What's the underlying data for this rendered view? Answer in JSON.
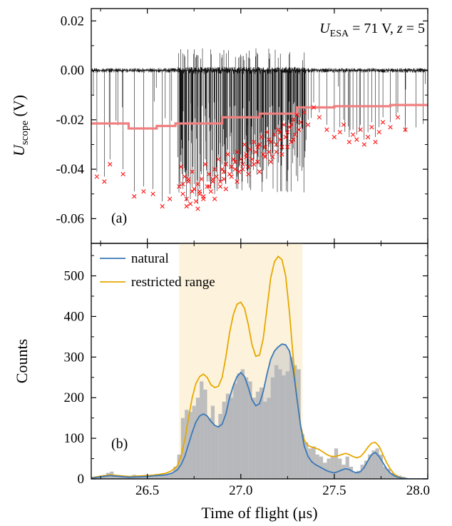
{
  "chart_data": [
    {
      "panel_label": "(a)",
      "type": "line",
      "ylabel_main": "U",
      "ylabel_sub": "scope",
      "ylabel_unit": " (V)",
      "annotation": {
        "u": "U",
        "u_sub": "ESA",
        "eq": " = 71 V,  ",
        "z": "z",
        "z_eq": " = 5"
      },
      "xlim": [
        26.2,
        28.0
      ],
      "ylim": [
        -0.07,
        0.025
      ],
      "yticks": [
        0.02,
        0.0,
        -0.02,
        -0.04,
        -0.06
      ],
      "ytick_labels": [
        "0.02",
        "0.00",
        "-0.02",
        "-0.04",
        "-0.06"
      ],
      "colors": {
        "signal": "#000000",
        "threshold": "#f08080",
        "peaks": "#ff0000"
      },
      "threshold": {
        "x": [
          26.2,
          26.4,
          26.4,
          26.55,
          26.55,
          26.65,
          26.65,
          26.9,
          26.9,
          27.1,
          27.1,
          27.3,
          27.3,
          27.5,
          27.5,
          27.8,
          27.8,
          28.0
        ],
        "y": [
          -0.0215,
          -0.0215,
          -0.0235,
          -0.0235,
          -0.0225,
          -0.0225,
          -0.0215,
          -0.0215,
          -0.019,
          -0.019,
          -0.0175,
          -0.0175,
          -0.015,
          -0.015,
          -0.0145,
          -0.0145,
          -0.014,
          -0.014
        ]
      },
      "peaks": {
        "x": [
          26.23,
          26.27,
          26.3,
          26.37,
          26.43,
          26.48,
          26.53,
          26.58,
          26.62,
          26.67,
          26.68,
          26.69,
          26.7,
          26.71,
          26.72,
          26.73,
          26.74,
          26.75,
          26.76,
          26.77,
          26.78,
          26.79,
          26.8,
          26.81,
          26.82,
          26.83,
          26.84,
          26.85,
          26.86,
          26.87,
          26.88,
          26.89,
          26.9,
          26.91,
          26.92,
          26.93,
          26.94,
          26.95,
          26.96,
          26.97,
          26.98,
          26.99,
          27.0,
          27.01,
          27.02,
          27.03,
          27.04,
          27.05,
          27.06,
          27.07,
          27.08,
          27.09,
          27.1,
          27.11,
          27.12,
          27.13,
          27.14,
          27.15,
          27.16,
          27.17,
          27.18,
          27.19,
          27.2,
          27.21,
          27.22,
          27.23,
          27.24,
          27.25,
          27.26,
          27.27,
          27.28,
          27.29,
          27.3,
          27.31,
          27.32,
          27.34,
          27.36,
          27.39,
          27.42,
          27.46,
          27.5,
          27.53,
          27.55,
          27.58,
          27.6,
          27.62,
          27.64,
          27.66,
          27.68,
          27.7,
          27.72,
          27.74,
          27.76,
          27.8,
          27.84,
          27.88,
          26.69,
          26.71,
          26.74,
          26.77,
          26.8,
          26.83,
          26.86,
          26.89,
          26.92,
          26.95,
          26.98,
          27.01,
          27.04,
          27.07,
          27.1,
          27.13,
          27.16,
          27.19,
          27.22,
          27.25,
          27.28,
          26.72,
          26.78,
          26.85,
          26.91,
          26.97,
          27.03,
          27.09,
          27.15,
          27.21,
          27.27
        ],
        "y": [
          -0.043,
          -0.045,
          -0.038,
          -0.042,
          -0.051,
          -0.049,
          -0.05,
          -0.055,
          -0.052,
          -0.047,
          -0.039,
          -0.05,
          -0.043,
          -0.052,
          -0.045,
          -0.054,
          -0.041,
          -0.048,
          -0.053,
          -0.046,
          -0.05,
          -0.044,
          -0.052,
          -0.038,
          -0.047,
          -0.042,
          -0.049,
          -0.045,
          -0.04,
          -0.043,
          -0.036,
          -0.047,
          -0.04,
          -0.044,
          -0.038,
          -0.034,
          -0.042,
          -0.039,
          -0.036,
          -0.04,
          -0.033,
          -0.041,
          -0.036,
          -0.038,
          -0.03,
          -0.035,
          -0.039,
          -0.032,
          -0.036,
          -0.029,
          -0.033,
          -0.037,
          -0.03,
          -0.027,
          -0.034,
          -0.031,
          -0.025,
          -0.033,
          -0.029,
          -0.035,
          -0.026,
          -0.03,
          -0.024,
          -0.028,
          -0.031,
          -0.022,
          -0.027,
          -0.025,
          -0.023,
          -0.029,
          -0.02,
          -0.026,
          -0.018,
          -0.024,
          -0.021,
          -0.017,
          -0.022,
          -0.015,
          -0.019,
          -0.024,
          -0.027,
          -0.025,
          -0.022,
          -0.029,
          -0.026,
          -0.028,
          -0.024,
          -0.03,
          -0.027,
          -0.023,
          -0.029,
          -0.025,
          -0.021,
          -0.023,
          -0.019,
          -0.024,
          -0.046,
          -0.055,
          -0.049,
          -0.056,
          -0.051,
          -0.047,
          -0.052,
          -0.045,
          -0.048,
          -0.043,
          -0.045,
          -0.04,
          -0.042,
          -0.038,
          -0.041,
          -0.035,
          -0.037,
          -0.033,
          -0.034,
          -0.031,
          -0.028,
          -0.044,
          -0.049,
          -0.044,
          -0.041,
          -0.037,
          -0.034,
          -0.031,
          -0.028,
          -0.025,
          -0.022
        ]
      }
    },
    {
      "panel_label": "(b)",
      "type": "line",
      "xlabel": "Time of flight (μs)",
      "ylabel": "Counts",
      "xlim": [
        26.2,
        28.0
      ],
      "ylim": [
        0,
        580
      ],
      "xticks": [
        26.5,
        27.0,
        27.5,
        28.0
      ],
      "xtick_labels": [
        "26.5",
        "27.0",
        "27.5",
        "28.0"
      ],
      "yticks": [
        0,
        100,
        200,
        300,
        400,
        500
      ],
      "ytick_labels": [
        "0",
        "100",
        "200",
        "300",
        "400",
        "500"
      ],
      "restricted_region": [
        26.67,
        27.33
      ],
      "colors": {
        "natural": "#3a78b8",
        "restricted": "#e5a800",
        "histogram": "#bdbdbd",
        "band": "#fdf3dc"
      },
      "legend": [
        "natural",
        "restricted range"
      ],
      "histogram": {
        "bin_width": 0.02,
        "bin_start": [
          26.2,
          26.22,
          26.24,
          26.26,
          26.28,
          26.3,
          26.32,
          26.34,
          26.36,
          26.38,
          26.4,
          26.42,
          26.44,
          26.46,
          26.48,
          26.5,
          26.52,
          26.54,
          26.56,
          26.58,
          26.6,
          26.62,
          26.64,
          26.66,
          26.68,
          26.7,
          26.72,
          26.74,
          26.76,
          26.78,
          26.8,
          26.82,
          26.84,
          26.86,
          26.88,
          26.9,
          26.92,
          26.94,
          26.96,
          26.98,
          27.0,
          27.02,
          27.04,
          27.06,
          27.08,
          27.1,
          27.12,
          27.14,
          27.16,
          27.18,
          27.2,
          27.22,
          27.24,
          27.26,
          27.28,
          27.3,
          27.32,
          27.34,
          27.36,
          27.38,
          27.4,
          27.42,
          27.44,
          27.46,
          27.48,
          27.5,
          27.52,
          27.54,
          27.56,
          27.58,
          27.6,
          27.62,
          27.64,
          27.66,
          27.68,
          27.7,
          27.72,
          27.74,
          27.76,
          27.78,
          27.8,
          27.82,
          27.84,
          27.86,
          27.88
        ],
        "counts": [
          0,
          5,
          8,
          10,
          15,
          18,
          10,
          8,
          5,
          8,
          5,
          10,
          8,
          5,
          10,
          8,
          5,
          12,
          10,
          8,
          10,
          15,
          30,
          60,
          150,
          170,
          165,
          180,
          200,
          240,
          220,
          150,
          180,
          130,
          160,
          190,
          210,
          200,
          235,
          260,
          270,
          250,
          240,
          200,
          215,
          225,
          190,
          200,
          250,
          280,
          270,
          255,
          265,
          300,
          280,
          270,
          110,
          90,
          75,
          80,
          60,
          55,
          40,
          50,
          55,
          75,
          50,
          35,
          55,
          30,
          15,
          20,
          35,
          45,
          60,
          70,
          75,
          60,
          30,
          25,
          15,
          10,
          8,
          5,
          0
        ]
      },
      "series": [
        {
          "name": "natural",
          "x": [
            26.2,
            26.3,
            26.4,
            26.5,
            26.55,
            26.6,
            26.63,
            26.66,
            26.68,
            26.7,
            26.72,
            26.74,
            26.76,
            26.78,
            26.8,
            26.82,
            26.84,
            26.86,
            26.88,
            26.9,
            26.92,
            26.94,
            26.96,
            26.98,
            27.0,
            27.02,
            27.04,
            27.06,
            27.08,
            27.1,
            27.12,
            27.14,
            27.16,
            27.18,
            27.2,
            27.22,
            27.24,
            27.26,
            27.28,
            27.3,
            27.32,
            27.34,
            27.36,
            27.38,
            27.4,
            27.42,
            27.44,
            27.46,
            27.48,
            27.5,
            27.52,
            27.54,
            27.56,
            27.58,
            27.6,
            27.62,
            27.64,
            27.66,
            27.68,
            27.7,
            27.72,
            27.74,
            27.76,
            27.78,
            27.8,
            27.82,
            27.84,
            27.86,
            27.88,
            27.9,
            28.0
          ],
          "y": [
            2,
            8,
            4,
            6,
            8,
            10,
            14,
            22,
            35,
            55,
            85,
            115,
            140,
            155,
            160,
            155,
            142,
            132,
            128,
            135,
            160,
            200,
            230,
            252,
            262,
            252,
            225,
            195,
            180,
            185,
            215,
            258,
            295,
            315,
            325,
            332,
            330,
            315,
            270,
            200,
            130,
            80,
            55,
            42,
            35,
            30,
            25,
            20,
            17,
            15,
            18,
            22,
            25,
            23,
            18,
            15,
            18,
            28,
            45,
            60,
            65,
            55,
            40,
            25,
            14,
            8,
            4,
            2,
            1,
            0,
            0
          ]
        },
        {
          "name": "restricted range",
          "x": [
            26.2,
            26.3,
            26.4,
            26.5,
            26.55,
            26.6,
            26.63,
            26.66,
            26.68,
            26.7,
            26.72,
            26.74,
            26.76,
            26.78,
            26.8,
            26.82,
            26.84,
            26.86,
            26.88,
            26.9,
            26.92,
            26.94,
            26.96,
            26.98,
            27.0,
            27.02,
            27.04,
            27.06,
            27.08,
            27.1,
            27.12,
            27.14,
            27.16,
            27.18,
            27.2,
            27.22,
            27.24,
            27.26,
            27.28,
            27.3,
            27.32,
            27.34,
            27.36,
            27.38,
            27.4,
            27.42,
            27.44,
            27.46,
            27.48,
            27.5,
            27.52,
            27.54,
            27.56,
            27.58,
            27.6,
            27.62,
            27.64,
            27.66,
            27.68,
            27.7,
            27.72,
            27.74,
            27.76,
            27.78,
            27.8,
            27.82,
            27.84,
            27.86,
            27.88,
            27.9,
            28.0
          ],
          "y": [
            3,
            10,
            6,
            8,
            10,
            14,
            20,
            32,
            55,
            95,
            150,
            200,
            235,
            252,
            258,
            250,
            232,
            225,
            228,
            250,
            300,
            360,
            405,
            430,
            435,
            420,
            380,
            330,
            302,
            305,
            345,
            420,
            495,
            535,
            548,
            540,
            500,
            410,
            300,
            200,
            130,
            95,
            82,
            78,
            76,
            72,
            66,
            60,
            56,
            55,
            57,
            60,
            63,
            60,
            55,
            52,
            55,
            65,
            78,
            88,
            90,
            80,
            60,
            40,
            24,
            12,
            6,
            3,
            1,
            0,
            0
          ]
        }
      ]
    }
  ]
}
